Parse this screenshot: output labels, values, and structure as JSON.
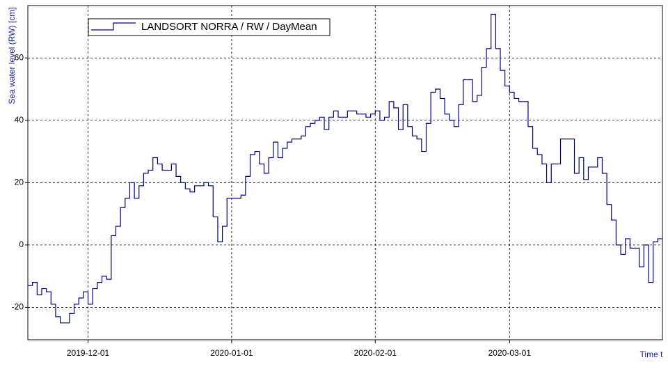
{
  "chart_data": {
    "type": "step",
    "ylabel": "Sea water level (RW) [cm]",
    "xlabel": "Time t",
    "legend": "top-left",
    "grid": true,
    "xlim": [
      "2019-11-18",
      "2020-04-03"
    ],
    "ylim": [
      -30.4,
      76.8
    ],
    "xticks": [
      "2019-12-01",
      "2020-01-01",
      "2020-02-01",
      "2020-03-01"
    ],
    "yticks": [
      -20,
      0,
      20,
      40,
      60
    ],
    "x": [
      "2019-11-18",
      "2019-11-19",
      "2019-11-20",
      "2019-11-21",
      "2019-11-22",
      "2019-11-23",
      "2019-11-24",
      "2019-11-25",
      "2019-11-26",
      "2019-11-27",
      "2019-11-28",
      "2019-11-29",
      "2019-11-30",
      "2019-12-01",
      "2019-12-02",
      "2019-12-03",
      "2019-12-04",
      "2019-12-05",
      "2019-12-06",
      "2019-12-07",
      "2019-12-08",
      "2019-12-09",
      "2019-12-10",
      "2019-12-11",
      "2019-12-12",
      "2019-12-13",
      "2019-12-14",
      "2019-12-15",
      "2019-12-16",
      "2019-12-17",
      "2019-12-18",
      "2019-12-19",
      "2019-12-20",
      "2019-12-21",
      "2019-12-22",
      "2019-12-23",
      "2019-12-24",
      "2019-12-25",
      "2019-12-26",
      "2019-12-27",
      "2019-12-28",
      "2019-12-29",
      "2019-12-30",
      "2019-12-31",
      "2020-01-01",
      "2020-01-02",
      "2020-01-03",
      "2020-01-04",
      "2020-01-05",
      "2020-01-06",
      "2020-01-07",
      "2020-01-08",
      "2020-01-09",
      "2020-01-10",
      "2020-01-11",
      "2020-01-12",
      "2020-01-13",
      "2020-01-14",
      "2020-01-15",
      "2020-01-16",
      "2020-01-17",
      "2020-01-18",
      "2020-01-19",
      "2020-01-20",
      "2020-01-21",
      "2020-01-22",
      "2020-01-23",
      "2020-01-24",
      "2020-01-25",
      "2020-01-26",
      "2020-01-27",
      "2020-01-28",
      "2020-01-29",
      "2020-01-30",
      "2020-01-31",
      "2020-02-01",
      "2020-02-02",
      "2020-02-03",
      "2020-02-04",
      "2020-02-05",
      "2020-02-06",
      "2020-02-07",
      "2020-02-08",
      "2020-02-09",
      "2020-02-10",
      "2020-02-11",
      "2020-02-12",
      "2020-02-13",
      "2020-02-14",
      "2020-02-15",
      "2020-02-16",
      "2020-02-17",
      "2020-02-18",
      "2020-02-19",
      "2020-02-20",
      "2020-02-21",
      "2020-02-22",
      "2020-02-23",
      "2020-02-24",
      "2020-02-25",
      "2020-02-26",
      "2020-02-27",
      "2020-02-28",
      "2020-02-29",
      "2020-03-01",
      "2020-03-02",
      "2020-03-03",
      "2020-03-04",
      "2020-03-05",
      "2020-03-06",
      "2020-03-07",
      "2020-03-08",
      "2020-03-09",
      "2020-03-10",
      "2020-03-11",
      "2020-03-12",
      "2020-03-13",
      "2020-03-14",
      "2020-03-15",
      "2020-03-16",
      "2020-03-17",
      "2020-03-18",
      "2020-03-19",
      "2020-03-20",
      "2020-03-21",
      "2020-03-22",
      "2020-03-23",
      "2020-03-24",
      "2020-03-25",
      "2020-03-26",
      "2020-03-27",
      "2020-03-28",
      "2020-03-29",
      "2020-03-30",
      "2020-03-31",
      "2020-04-01",
      "2020-04-02"
    ],
    "series": [
      {
        "name": "LANDSORT NORRA / RW / DayMean",
        "color": "#000080",
        "values": [
          -13,
          -12,
          -16,
          -14,
          -15,
          -19,
          -23,
          -25,
          -25,
          -22,
          -19,
          -17,
          -15,
          -19,
          -14,
          -12,
          -10,
          -11,
          3,
          6,
          12,
          15,
          20,
          15,
          19,
          23,
          24,
          28,
          26,
          24,
          24,
          26,
          22,
          20,
          18,
          17,
          19,
          19,
          20,
          19,
          9,
          1,
          6,
          15,
          15,
          15,
          16,
          22,
          29,
          30,
          26,
          23,
          28,
          33,
          28,
          31,
          33,
          34,
          34,
          35,
          38,
          39,
          40,
          41,
          37,
          41,
          43,
          41,
          41,
          43,
          43,
          42,
          42,
          41,
          42,
          43,
          40,
          41,
          46,
          44,
          37,
          45,
          38,
          35,
          34,
          30,
          39,
          49,
          50,
          47,
          42,
          40,
          38,
          45,
          53,
          53,
          46,
          48,
          57,
          63,
          74,
          63,
          56,
          51,
          49,
          47,
          46,
          46,
          38,
          31,
          29,
          26,
          20,
          26,
          26,
          34,
          34,
          34,
          23,
          28,
          21,
          25,
          25,
          28,
          23,
          13,
          8,
          0,
          -3,
          2,
          -1,
          -1,
          -7,
          0,
          -12,
          1,
          2
        ]
      }
    ]
  }
}
